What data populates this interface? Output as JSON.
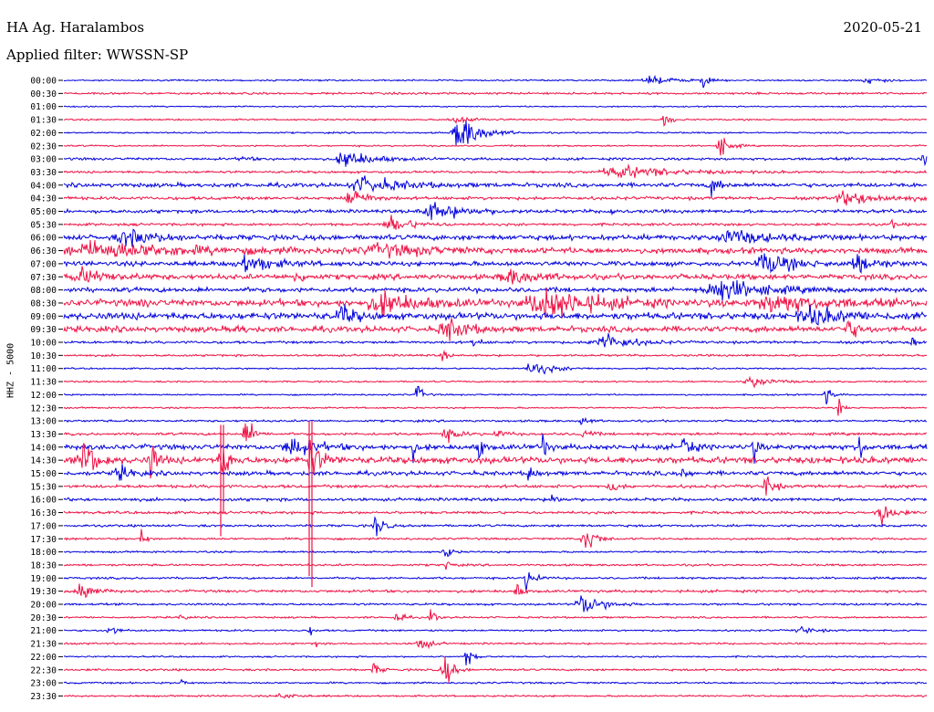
{
  "header": {
    "station": "HA Ag. Haralambos",
    "date": "2020-05-21",
    "filter": "Applied filter: WWSSN-SP"
  },
  "chart_data": {
    "type": "line",
    "ylabel": "HHZ - 5000",
    "rows": [
      "00:00",
      "00:30",
      "01:00",
      "01:30",
      "02:00",
      "02:30",
      "03:00",
      "03:30",
      "04:00",
      "04:30",
      "05:00",
      "05:30",
      "06:00",
      "06:30",
      "07:00",
      "07:30",
      "08:00",
      "08:30",
      "09:00",
      "09:30",
      "10:00",
      "10:30",
      "11:00",
      "11:30",
      "12:00",
      "12:30",
      "13:00",
      "13:30",
      "14:00",
      "14:30",
      "15:00",
      "15:30",
      "16:00",
      "16:30",
      "17:00",
      "17:30",
      "18:00",
      "18:30",
      "19:00",
      "19:30",
      "20:00",
      "20:30",
      "21:00",
      "21:30",
      "22:00",
      "22:30",
      "23:00",
      "23:30"
    ],
    "colors": [
      "#0000dd",
      "#ee1144"
    ],
    "noise_levels": [
      0.6,
      0.8,
      0.5,
      0.6,
      0.6,
      0.6,
      1.0,
      0.9,
      1.6,
      1.2,
      1.3,
      1.0,
      2.0,
      2.2,
      1.8,
      2.0,
      1.8,
      2.6,
      2.6,
      2.2,
      1.0,
      0.8,
      0.6,
      0.6,
      0.6,
      0.6,
      0.8,
      1.0,
      2.0,
      2.5,
      1.6,
      1.2,
      1.2,
      1.0,
      0.9,
      0.8,
      0.7,
      0.8,
      0.8,
      1.0,
      0.8,
      0.7,
      0.7,
      0.7,
      0.6,
      0.8,
      0.7,
      0.7
    ],
    "events": [
      {
        "row": 0,
        "x": 715,
        "width": 40,
        "amp": 3
      },
      {
        "row": 0,
        "x": 770,
        "width": 6,
        "amp": 9
      },
      {
        "row": 0,
        "x": 950,
        "width": 20,
        "amp": 3
      },
      {
        "row": 3,
        "x": 500,
        "width": 30,
        "amp": 3
      },
      {
        "row": 3,
        "x": 728,
        "width": 10,
        "amp": 7
      },
      {
        "row": 4,
        "x": 505,
        "width": 30,
        "amp": 16
      },
      {
        "row": 5,
        "x": 790,
        "width": 14,
        "amp": 9
      },
      {
        "row": 6,
        "x": 380,
        "width": 40,
        "amp": 7
      },
      {
        "row": 6,
        "x": 1012,
        "width": 6,
        "amp": 8
      },
      {
        "row": 6,
        "x": 265,
        "width": 10,
        "amp": 3
      },
      {
        "row": 7,
        "x": 680,
        "width": 80,
        "amp": 5
      },
      {
        "row": 8,
        "x": 400,
        "width": 60,
        "amp": 6
      },
      {
        "row": 8,
        "x": 780,
        "width": 12,
        "amp": 8
      },
      {
        "row": 9,
        "x": 385,
        "width": 25,
        "amp": 8
      },
      {
        "row": 9,
        "x": 930,
        "width": 60,
        "amp": 5
      },
      {
        "row": 10,
        "x": 475,
        "width": 50,
        "amp": 7
      },
      {
        "row": 10,
        "x": 668,
        "width": 6,
        "amp": 6
      },
      {
        "row": 11,
        "x": 430,
        "width": 30,
        "amp": 7
      },
      {
        "row": 11,
        "x": 978,
        "width": 4,
        "amp": 6
      },
      {
        "row": 12,
        "x": 140,
        "width": 40,
        "amp": 7
      },
      {
        "row": 12,
        "x": 800,
        "width": 50,
        "amp": 6
      },
      {
        "row": 13,
        "x": 110,
        "width": 150,
        "amp": 6
      },
      {
        "row": 13,
        "x": 420,
        "width": 80,
        "amp": 4
      },
      {
        "row": 14,
        "x": 270,
        "width": 40,
        "amp": 7
      },
      {
        "row": 14,
        "x": 840,
        "width": 40,
        "amp": 9
      },
      {
        "row": 14,
        "x": 940,
        "width": 30,
        "amp": 7
      },
      {
        "row": 15,
        "x": 90,
        "width": 40,
        "amp": 6
      },
      {
        "row": 15,
        "x": 325,
        "width": 10,
        "amp": 6
      },
      {
        "row": 15,
        "x": 560,
        "width": 40,
        "amp": 6
      },
      {
        "row": 16,
        "x": 790,
        "width": 60,
        "amp": 9
      },
      {
        "row": 17,
        "x": 420,
        "width": 60,
        "amp": 8
      },
      {
        "row": 17,
        "x": 600,
        "width": 80,
        "amp": 12
      },
      {
        "row": 17,
        "x": 850,
        "width": 80,
        "amp": 7
      },
      {
        "row": 17,
        "x": 155,
        "width": 4,
        "amp": 8
      },
      {
        "row": 18,
        "x": 375,
        "width": 20,
        "amp": 8
      },
      {
        "row": 18,
        "x": 890,
        "width": 50,
        "amp": 7
      },
      {
        "row": 18,
        "x": 1000,
        "width": 6,
        "amp": 6
      },
      {
        "row": 19,
        "x": 490,
        "width": 30,
        "amp": 9
      },
      {
        "row": 19,
        "x": 930,
        "width": 14,
        "amp": 9
      },
      {
        "row": 19,
        "x": 260,
        "width": 8,
        "amp": 5
      },
      {
        "row": 20,
        "x": 660,
        "width": 40,
        "amp": 8
      },
      {
        "row": 20,
        "x": 1000,
        "width": 6,
        "amp": 12
      },
      {
        "row": 20,
        "x": 520,
        "width": 8,
        "amp": 5
      },
      {
        "row": 21,
        "x": 485,
        "width": 6,
        "amp": 7
      },
      {
        "row": 22,
        "x": 585,
        "width": 30,
        "amp": 6
      },
      {
        "row": 23,
        "x": 825,
        "width": 30,
        "amp": 5
      },
      {
        "row": 24,
        "x": 457,
        "width": 8,
        "amp": 10
      },
      {
        "row": 24,
        "x": 905,
        "width": 10,
        "amp": 7
      },
      {
        "row": 25,
        "x": 920,
        "width": 6,
        "amp": 8
      },
      {
        "row": 26,
        "x": 638,
        "width": 10,
        "amp": 4
      },
      {
        "row": 27,
        "x": 270,
        "width": 12,
        "amp": 14
      },
      {
        "row": 27,
        "x": 490,
        "width": 20,
        "amp": 5
      },
      {
        "row": 27,
        "x": 545,
        "width": 10,
        "amp": 5
      },
      {
        "row": 27,
        "x": 640,
        "width": 10,
        "amp": 5
      },
      {
        "row": 28,
        "x": 320,
        "width": 35,
        "amp": 8
      },
      {
        "row": 28,
        "x": 452,
        "width": 4,
        "amp": 12
      },
      {
        "row": 28,
        "x": 525,
        "width": 6,
        "amp": 12
      },
      {
        "row": 28,
        "x": 595,
        "width": 6,
        "amp": 14
      },
      {
        "row": 28,
        "x": 750,
        "width": 10,
        "amp": 14
      },
      {
        "row": 28,
        "x": 826,
        "width": 6,
        "amp": 14
      },
      {
        "row": 28,
        "x": 942,
        "width": 6,
        "amp": 16
      },
      {
        "row": 29,
        "x": 92,
        "width": 18,
        "amp": 18
      },
      {
        "row": 29,
        "x": 165,
        "width": 10,
        "amp": 16
      },
      {
        "row": 29,
        "x": 243,
        "width": 10,
        "amp": 22
      },
      {
        "row": 29,
        "x": 340,
        "width": 16,
        "amp": 16
      },
      {
        "row": 30,
        "x": 130,
        "width": 20,
        "amp": 6
      },
      {
        "row": 30,
        "x": 580,
        "width": 10,
        "amp": 7
      },
      {
        "row": 30,
        "x": 748,
        "width": 8,
        "amp": 6
      },
      {
        "row": 31,
        "x": 840,
        "width": 10,
        "amp": 12
      },
      {
        "row": 31,
        "x": 670,
        "width": 10,
        "amp": 6
      },
      {
        "row": 32,
        "x": 605,
        "width": 10,
        "amp": 5
      },
      {
        "row": 33,
        "x": 965,
        "width": 16,
        "amp": 12
      },
      {
        "row": 34,
        "x": 412,
        "width": 10,
        "amp": 12
      },
      {
        "row": 35,
        "x": 642,
        "width": 14,
        "amp": 15
      },
      {
        "row": 35,
        "x": 155,
        "width": 6,
        "amp": 9
      },
      {
        "row": 36,
        "x": 488,
        "width": 10,
        "amp": 6
      },
      {
        "row": 37,
        "x": 490,
        "width": 6,
        "amp": 8
      },
      {
        "row": 38,
        "x": 578,
        "width": 12,
        "amp": 10
      },
      {
        "row": 39,
        "x": 88,
        "width": 20,
        "amp": 8
      },
      {
        "row": 39,
        "x": 566,
        "width": 8,
        "amp": 7
      },
      {
        "row": 40,
        "x": 640,
        "width": 30,
        "amp": 9
      },
      {
        "row": 41,
        "x": 435,
        "width": 8,
        "amp": 8
      },
      {
        "row": 41,
        "x": 472,
        "width": 8,
        "amp": 7
      },
      {
        "row": 41,
        "x": 198,
        "width": 6,
        "amp": 4
      },
      {
        "row": 42,
        "x": 120,
        "width": 10,
        "amp": 6
      },
      {
        "row": 42,
        "x": 340,
        "width": 6,
        "amp": 4
      },
      {
        "row": 42,
        "x": 878,
        "width": 20,
        "amp": 3
      },
      {
        "row": 43,
        "x": 460,
        "width": 14,
        "amp": 7
      },
      {
        "row": 43,
        "x": 347,
        "width": 4,
        "amp": 4
      },
      {
        "row": 44,
        "x": 512,
        "width": 8,
        "amp": 10
      },
      {
        "row": 45,
        "x": 487,
        "width": 12,
        "amp": 16
      },
      {
        "row": 45,
        "x": 410,
        "width": 10,
        "amp": 5
      },
      {
        "row": 46,
        "x": 198,
        "width": 4,
        "amp": 8
      },
      {
        "row": 47,
        "x": 310,
        "width": 20,
        "amp": 3
      }
    ],
    "spikes": [
      {
        "row": 26,
        "x": 342,
        "up": 0,
        "down": 182,
        "color": "#ee1144"
      },
      {
        "row": 26,
        "x": 339,
        "up": 0,
        "down": 170,
        "color": "#ee1144"
      },
      {
        "row": 27,
        "x": 242,
        "up": 10,
        "down": 112,
        "color": "#ee1144"
      },
      {
        "row": 27,
        "x": 245,
        "up": 10,
        "down": 85,
        "color": "#ee1144"
      }
    ]
  }
}
